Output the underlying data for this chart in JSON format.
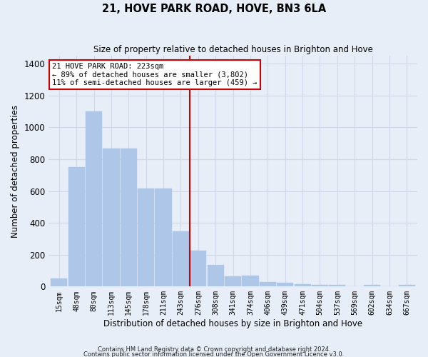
{
  "title": "21, HOVE PARK ROAD, HOVE, BN3 6LA",
  "subtitle": "Size of property relative to detached houses in Brighton and Hove",
  "xlabel": "Distribution of detached houses by size in Brighton and Hove",
  "ylabel": "Number of detached properties",
  "footnote1": "Contains HM Land Registry data © Crown copyright and database right 2024.",
  "footnote2": "Contains public sector information licensed under the Open Government Licence v3.0.",
  "bar_labels": [
    "15sqm",
    "48sqm",
    "80sqm",
    "113sqm",
    "145sqm",
    "178sqm",
    "211sqm",
    "243sqm",
    "276sqm",
    "308sqm",
    "341sqm",
    "374sqm",
    "406sqm",
    "439sqm",
    "471sqm",
    "504sqm",
    "537sqm",
    "569sqm",
    "602sqm",
    "634sqm",
    "667sqm"
  ],
  "bar_heights": [
    50,
    750,
    1100,
    865,
    865,
    615,
    615,
    345,
    225,
    135,
    65,
    70,
    30,
    25,
    15,
    10,
    10,
    0,
    10,
    0,
    10
  ],
  "bar_color": "#aec6e8",
  "bar_edge_color": "#aec6e8",
  "grid_color": "#d0d8e8",
  "background_color": "#e8eef8",
  "vline_color": "#cc0000",
  "annotation_line1": "21 HOVE PARK ROAD: 223sqm",
  "annotation_line2": "← 89% of detached houses are smaller (3,802)",
  "annotation_line3": "11% of semi-detached houses are larger (459) →",
  "annotation_box_color": "#ffffff",
  "annotation_box_edgecolor": "#cc0000",
  "ylim": [
    0,
    1450
  ],
  "yticks": [
    0,
    200,
    400,
    600,
    800,
    1000,
    1200,
    1400
  ],
  "vline_bar_index": 7.5
}
